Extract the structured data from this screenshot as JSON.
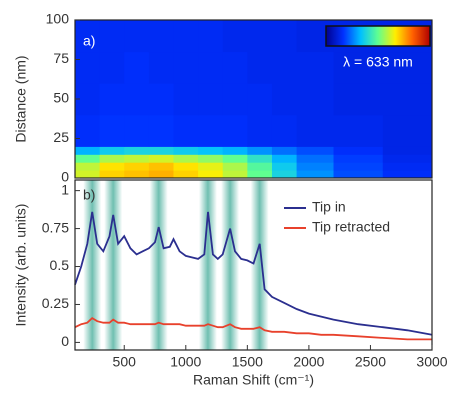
{
  "chart_data": [
    {
      "type": "heatmap",
      "panel_label": "a)",
      "ylabel": "Distance (nm)",
      "colorbar_label": "λ = 633 nm",
      "xlim": [
        100,
        3000
      ],
      "ylim": [
        0,
        100
      ],
      "yticks": [
        0,
        25,
        50,
        75,
        100
      ],
      "x_edges": [
        100,
        300,
        500,
        700,
        900,
        1100,
        1300,
        1500,
        1700,
        1900,
        2200,
        2600,
        3000
      ],
      "y_edges": [
        0,
        5,
        10,
        15,
        20,
        40,
        60,
        80,
        100
      ],
      "z": [
        [
          0.62,
          0.7,
          0.72,
          0.74,
          0.7,
          0.66,
          0.6,
          0.5,
          0.38,
          0.28,
          0.2,
          0.16
        ],
        [
          0.6,
          0.68,
          0.7,
          0.72,
          0.68,
          0.64,
          0.58,
          0.48,
          0.36,
          0.26,
          0.19,
          0.15
        ],
        [
          0.5,
          0.58,
          0.6,
          0.62,
          0.58,
          0.55,
          0.5,
          0.42,
          0.32,
          0.24,
          0.18,
          0.14
        ],
        [
          0.32,
          0.36,
          0.38,
          0.38,
          0.36,
          0.34,
          0.32,
          0.28,
          0.24,
          0.2,
          0.16,
          0.13
        ],
        [
          0.16,
          0.17,
          0.17,
          0.17,
          0.16,
          0.16,
          0.16,
          0.15,
          0.15,
          0.14,
          0.14,
          0.13
        ],
        [
          0.15,
          0.16,
          0.16,
          0.16,
          0.15,
          0.15,
          0.15,
          0.15,
          0.14,
          0.14,
          0.13,
          0.13
        ],
        [
          0.15,
          0.15,
          0.16,
          0.15,
          0.15,
          0.15,
          0.15,
          0.14,
          0.14,
          0.14,
          0.13,
          0.13
        ],
        [
          0.15,
          0.15,
          0.15,
          0.15,
          0.15,
          0.15,
          0.14,
          0.14,
          0.14,
          0.13,
          0.13,
          0.13
        ]
      ],
      "colormap": [
        "#00008f",
        "#0030ff",
        "#00c0ff",
        "#60ff90",
        "#ffee00",
        "#ff6000",
        "#b00000"
      ]
    },
    {
      "type": "line",
      "panel_label": "b)",
      "xlabel": "Raman Shift (cm⁻¹)",
      "ylabel": "Intensity (arb. units)",
      "xlim": [
        100,
        3000
      ],
      "ylim": [
        -0.05,
        1.07
      ],
      "xticks": [
        500,
        1000,
        1500,
        2000,
        2500,
        3000
      ],
      "yticks": [
        0,
        0.25,
        0.5,
        0.75,
        1
      ],
      "highlight_bands": [
        240,
        410,
        780,
        1180,
        1360,
        1600
      ],
      "band_color": "#5fb8a8",
      "legend": "upper right",
      "x": [
        100,
        150,
        200,
        240,
        280,
        330,
        380,
        410,
        450,
        500,
        550,
        600,
        650,
        700,
        750,
        780,
        820,
        870,
        900,
        950,
        1000,
        1050,
        1100,
        1150,
        1180,
        1220,
        1260,
        1300,
        1360,
        1400,
        1450,
        1500,
        1550,
        1600,
        1640,
        1700,
        1800,
        1900,
        2000,
        2100,
        2200,
        2400,
        2600,
        2800,
        3000
      ],
      "series": [
        {
          "name": "Tip in",
          "color": "#2b2f8f",
          "values": [
            0.38,
            0.5,
            0.65,
            0.86,
            0.65,
            0.6,
            0.7,
            0.84,
            0.65,
            0.7,
            0.62,
            0.58,
            0.6,
            0.62,
            0.66,
            0.76,
            0.62,
            0.63,
            0.68,
            0.6,
            0.57,
            0.56,
            0.55,
            0.58,
            0.86,
            0.58,
            0.55,
            0.58,
            0.75,
            0.6,
            0.55,
            0.54,
            0.52,
            0.65,
            0.35,
            0.3,
            0.26,
            0.22,
            0.19,
            0.17,
            0.15,
            0.12,
            0.1,
            0.08,
            0.05
          ]
        },
        {
          "name": "Tip retracted",
          "color": "#e8412c",
          "values": [
            0.1,
            0.12,
            0.13,
            0.16,
            0.14,
            0.13,
            0.13,
            0.15,
            0.13,
            0.13,
            0.12,
            0.12,
            0.12,
            0.12,
            0.12,
            0.13,
            0.12,
            0.12,
            0.12,
            0.12,
            0.11,
            0.11,
            0.11,
            0.11,
            0.12,
            0.11,
            0.1,
            0.1,
            0.12,
            0.1,
            0.09,
            0.09,
            0.09,
            0.1,
            0.08,
            0.07,
            0.07,
            0.06,
            0.06,
            0.05,
            0.05,
            0.04,
            0.03,
            0.02,
            0.02
          ]
        }
      ]
    }
  ]
}
